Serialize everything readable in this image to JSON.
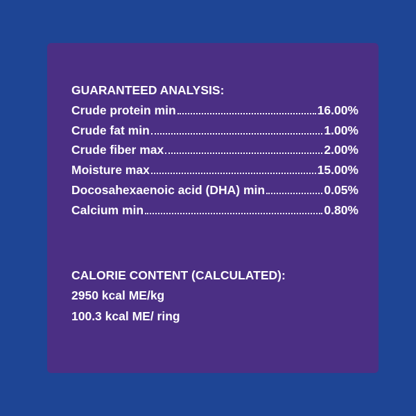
{
  "analysis": {
    "heading": "GUARANTEED ANALYSIS:",
    "rows": [
      [
        "Crude protein min",
        "16.00%"
      ],
      [
        "Crude fat min",
        "1.00%"
      ],
      [
        "Crude fiber max",
        "2.00%"
      ],
      [
        "Moisture max",
        "15.00%"
      ],
      [
        "Docosahexaenoic acid (DHA) min",
        "0.05%"
      ],
      [
        "Calcium min",
        "0.80%"
      ]
    ]
  },
  "calorie": {
    "heading": "CALORIE CONTENT (CALCULATED):",
    "lines": [
      "2950 kcal ME/kg",
      "100.3 kcal ME/ ring"
    ]
  }
}
